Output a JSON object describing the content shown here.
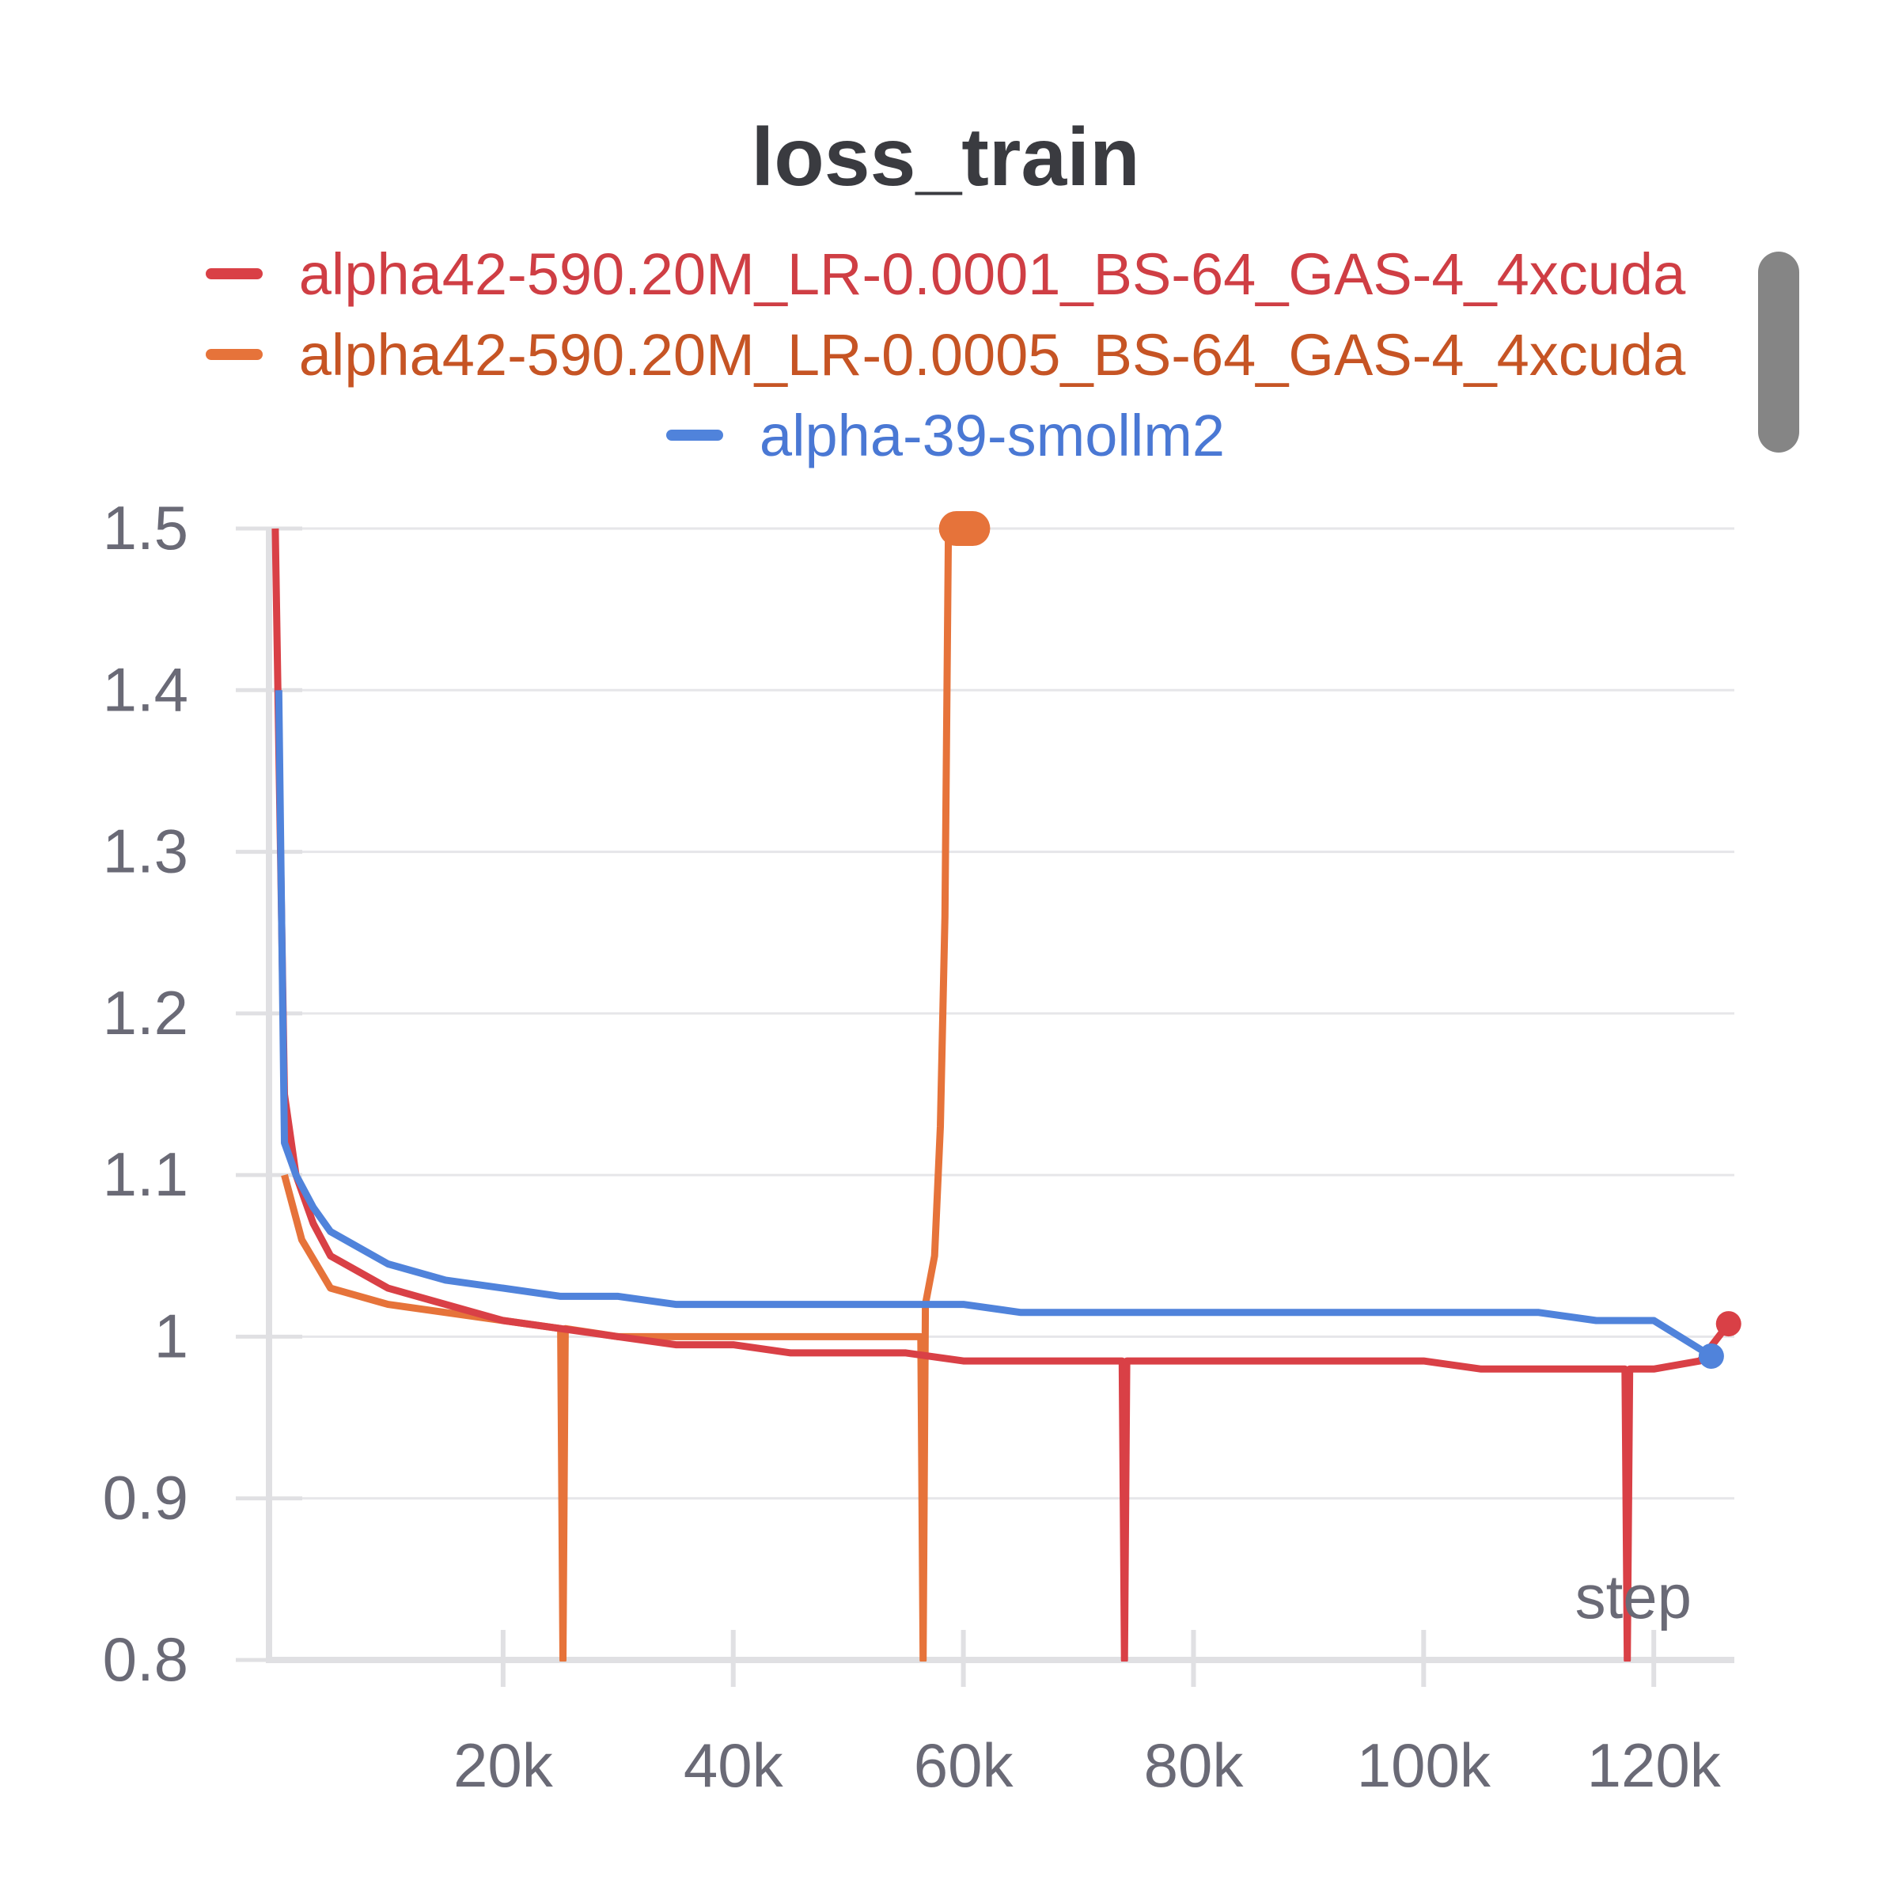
{
  "chart_data": {
    "type": "line",
    "title": "loss_train",
    "xlabel": "step",
    "ylabel": "",
    "xlim": [
      0,
      127000
    ],
    "ylim": [
      0.8,
      1.5
    ],
    "x_ticks": [
      20000,
      40000,
      60000,
      80000,
      100000,
      120000
    ],
    "x_tick_labels": [
      "20k",
      "40k",
      "60k",
      "80k",
      "100k",
      "120k"
    ],
    "y_ticks": [
      0.8,
      0.9,
      1.0,
      1.1,
      1.2,
      1.3,
      1.4,
      1.5
    ],
    "y_tick_labels": [
      "0.8",
      "0.9",
      "1",
      "1.1",
      "1.2",
      "1.3",
      "1.4",
      "1.5"
    ],
    "grid": true,
    "legend_position": "top-center",
    "series": [
      {
        "name": "alpha42-590.20M_LR-0.0001_BS-64_GAS-4_4xcuda",
        "color": "#d94046",
        "text_color": "#cf3e44",
        "x": [
          200,
          1000,
          2000,
          3500,
          5000,
          7500,
          10000,
          15000,
          20000,
          25000,
          30000,
          35000,
          40000,
          45000,
          50000,
          55000,
          60000,
          65000,
          70000,
          73800,
          74000,
          74200,
          80000,
          85000,
          90000,
          95000,
          100000,
          105000,
          110000,
          115000,
          117500,
          117700,
          117900,
          120000,
          124000,
          126500
        ],
        "y": [
          1.5,
          1.15,
          1.1,
          1.07,
          1.05,
          1.04,
          1.03,
          1.02,
          1.01,
          1.005,
          1.0,
          0.995,
          0.995,
          0.99,
          0.99,
          0.99,
          0.985,
          0.985,
          0.985,
          0.985,
          0.78,
          0.985,
          0.985,
          0.985,
          0.985,
          0.985,
          0.985,
          0.98,
          0.98,
          0.98,
          0.98,
          0.78,
          0.98,
          0.98,
          0.985,
          1.008
        ]
      },
      {
        "name": "alpha42-590.20M_LR-0.0005_BS-64_GAS-4_4xcuda",
        "color": "#e6733a",
        "text_color": "#c65424",
        "x": [
          1000,
          2500,
          5000,
          10000,
          15000,
          20000,
          25000,
          25200,
          25400,
          30000,
          35000,
          40000,
          45000,
          50000,
          55000,
          56300,
          56500,
          56700,
          57500,
          58000,
          58400,
          58700,
          59000,
          61500
        ],
        "y": [
          1.1,
          1.06,
          1.03,
          1.02,
          1.015,
          1.01,
          1.005,
          0.78,
          1.005,
          1.0,
          1.0,
          1.0,
          1.0,
          1.0,
          1.0,
          1.0,
          0.78,
          1.02,
          1.05,
          1.13,
          1.26,
          1.5,
          1.5,
          1.5
        ]
      },
      {
        "name": "alpha-39-smollm2",
        "color": "#5083db",
        "text_color": "#4a78d4",
        "x": [
          500,
          1000,
          2000,
          3500,
          5000,
          7500,
          10000,
          15000,
          20000,
          25000,
          30000,
          35000,
          40000,
          45000,
          50000,
          55000,
          60000,
          65000,
          70000,
          75000,
          80000,
          85000,
          90000,
          95000,
          100000,
          105000,
          110000,
          115000,
          120000,
          125000
        ],
        "y": [
          1.4,
          1.12,
          1.1,
          1.08,
          1.065,
          1.055,
          1.045,
          1.035,
          1.03,
          1.025,
          1.025,
          1.02,
          1.02,
          1.02,
          1.02,
          1.02,
          1.02,
          1.015,
          1.015,
          1.015,
          1.015,
          1.015,
          1.015,
          1.015,
          1.015,
          1.015,
          1.015,
          1.01,
          1.01,
          0.988
        ]
      }
    ]
  }
}
